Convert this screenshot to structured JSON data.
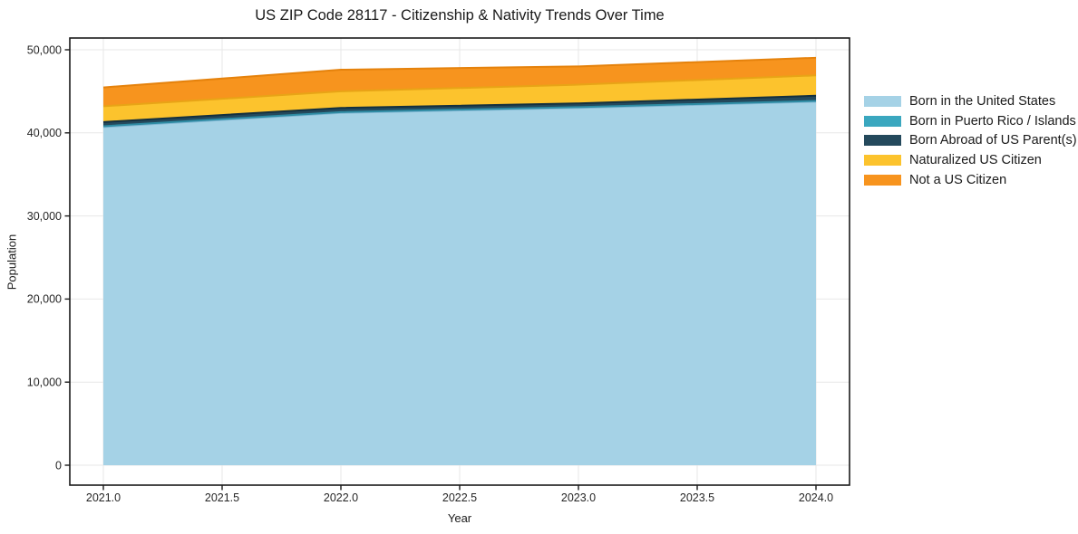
{
  "chart_data": {
    "type": "area",
    "stacked": true,
    "title": "US ZIP Code 28117 - Citizenship & Nativity Trends Over Time",
    "xlabel": "Year",
    "ylabel": "Population",
    "x": [
      2021,
      2022,
      2023,
      2024
    ],
    "series": [
      {
        "name": "Born in the United States",
        "values": [
          40700,
          42400,
          43000,
          43750
        ],
        "fill": "#a5d2e6",
        "edge": "#82b8d4"
      },
      {
        "name": "Born in Puerto Rico / Islands",
        "values": [
          100,
          100,
          100,
          100
        ],
        "fill": "#3aa7bf",
        "edge": "#2e8ca4"
      },
      {
        "name": "Born Abroad of US Parent(s)",
        "values": [
          500,
          500,
          450,
          620
        ],
        "fill": "#24495c",
        "edge": "#14303f"
      },
      {
        "name": "Naturalized US Citizen",
        "values": [
          1900,
          2000,
          2250,
          2450
        ],
        "fill": "#fcc32d",
        "edge": "#e8a416"
      },
      {
        "name": "Not a US Citizen",
        "values": [
          2270,
          2600,
          2200,
          2120
        ],
        "fill": "#f7941e",
        "edge": "#e5820c"
      }
    ],
    "x_tick_labels": [
      "2021.0",
      "2021.5",
      "2022.0",
      "2022.5",
      "2023.0",
      "2023.5",
      "2024.0"
    ],
    "y_tick_labels": [
      "0",
      "10,000",
      "20,000",
      "30,000",
      "40,000",
      "50,000"
    ],
    "xlim": [
      2020.85,
      2024.15
    ],
    "ylim": [
      0,
      50000
    ],
    "grid": true,
    "legend_position": "right-outside",
    "axis_color": "#1a1a1a",
    "tick_label_color": "#262626",
    "grid_color": "#e7e7e7",
    "background": "#ffffff"
  }
}
